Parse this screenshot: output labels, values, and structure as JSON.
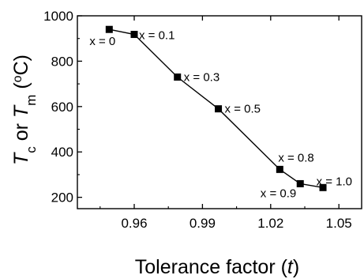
{
  "chart_data": {
    "type": "line",
    "xlabel": "Tolerance factor (t)",
    "ylabel": "T_c or T_m (°C)",
    "xlim": [
      0.935,
      1.06
    ],
    "ylim": [
      150,
      1000
    ],
    "x_ticks": [
      0.96,
      0.99,
      1.02,
      1.05
    ],
    "y_ticks": [
      200,
      400,
      600,
      800,
      1000
    ],
    "x_tick_labels": [
      "0.96",
      "0.99",
      "1.02",
      "1.05"
    ],
    "y_tick_labels": [
      "200",
      "400",
      "600",
      "800",
      "1000"
    ],
    "grid": false,
    "series": [
      {
        "marker": "square",
        "color": "#000000",
        "points": [
          {
            "x": 0.949,
            "y": 940,
            "label": "x = 0"
          },
          {
            "x": 0.96,
            "y": 918,
            "label": "x = 0.1"
          },
          {
            "x": 0.979,
            "y": 730,
            "label": "x = 0.3"
          },
          {
            "x": 0.997,
            "y": 590,
            "label": "x = 0.5"
          },
          {
            "x": 1.024,
            "y": 323,
            "label": "x = 0.8"
          },
          {
            "x": 1.033,
            "y": 260,
            "label": "x = 0.9"
          },
          {
            "x": 1.043,
            "y": 243,
            "label": "x = 1.0"
          }
        ]
      }
    ]
  }
}
